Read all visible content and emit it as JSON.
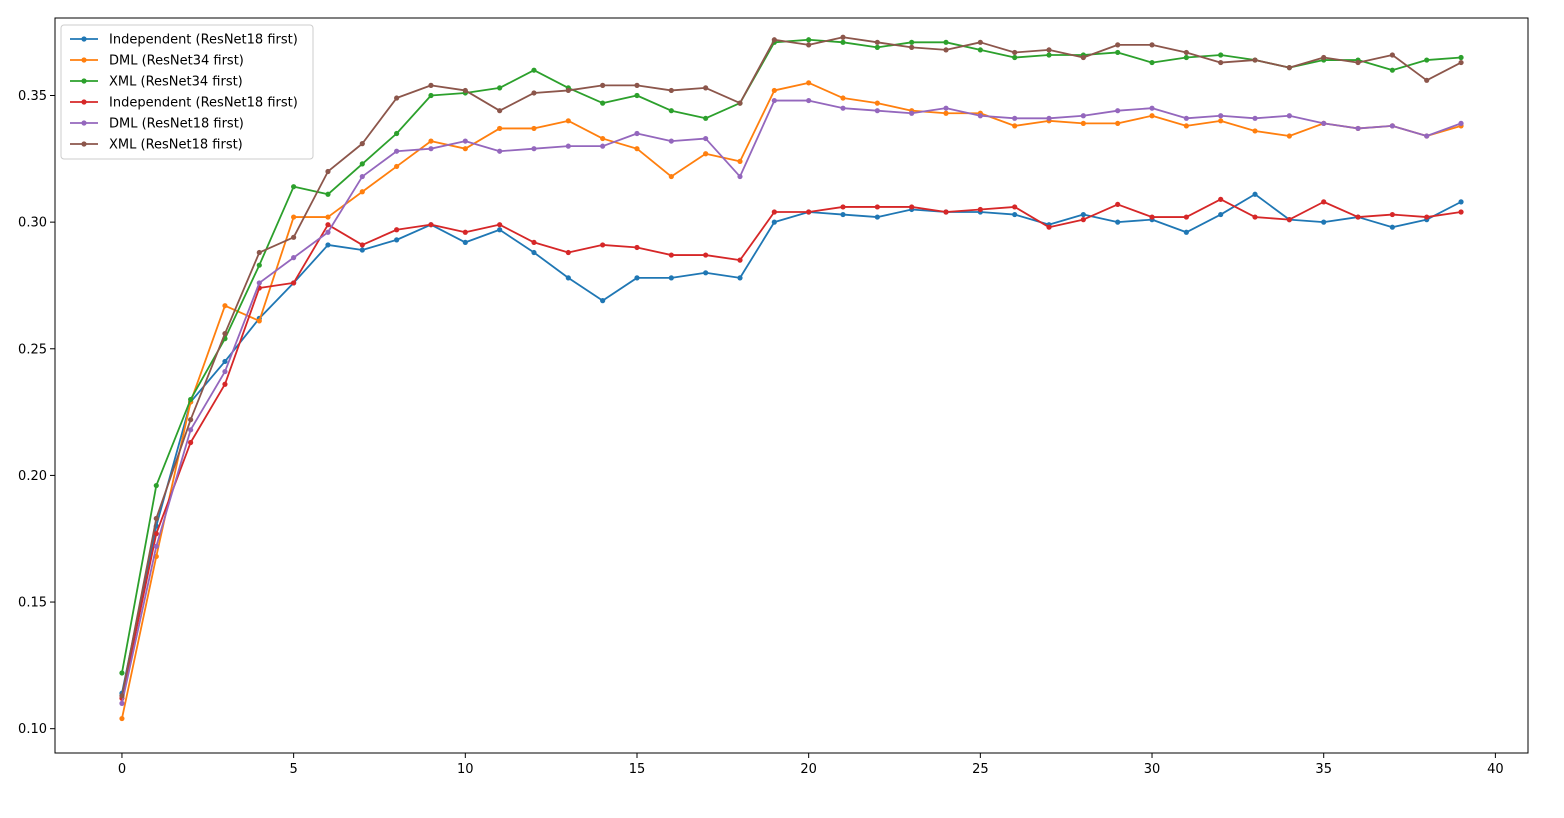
{
  "chart_data": {
    "type": "line",
    "title": "",
    "xlabel": "",
    "ylabel": "",
    "xlim": [
      -1.95,
      40.95
    ],
    "ylim": [
      0.0904,
      0.3806
    ],
    "xticks": [
      0,
      5,
      10,
      15,
      20,
      25,
      30,
      35,
      40
    ],
    "yticks": [
      0.1,
      0.15,
      0.2,
      0.25,
      0.3,
      0.35
    ],
    "ytick_labels": [
      "0.10",
      "0.15",
      "0.20",
      "0.25",
      "0.30",
      "0.35"
    ],
    "grid": false,
    "legend_position": "top-left",
    "x": [
      0,
      1,
      2,
      3,
      4,
      5,
      6,
      7,
      8,
      9,
      10,
      11,
      12,
      13,
      14,
      15,
      16,
      17,
      18,
      19,
      20,
      21,
      22,
      23,
      24,
      25,
      26,
      27,
      28,
      29,
      30,
      31,
      32,
      33,
      34,
      35,
      36,
      37,
      38,
      39
    ],
    "series": [
      {
        "name": "Independent (ResNet18 first)",
        "color": "#1f77b4",
        "values": [
          0.114,
          0.18,
          0.229,
          0.245,
          0.262,
          0.276,
          0.291,
          0.289,
          0.293,
          0.299,
          0.292,
          0.297,
          0.288,
          0.278,
          0.269,
          0.278,
          0.278,
          0.28,
          0.278,
          0.3,
          0.304,
          0.303,
          0.302,
          0.305,
          0.304,
          0.304,
          0.303,
          0.299,
          0.303,
          0.3,
          0.301,
          0.296,
          0.303,
          0.311,
          0.301,
          0.3,
          0.302,
          0.298,
          0.301,
          0.308
        ]
      },
      {
        "name": "DML (ResNet34 first)",
        "color": "#ff7f0e",
        "values": [
          0.104,
          0.168,
          0.229,
          0.267,
          0.261,
          0.302,
          0.302,
          0.312,
          0.322,
          0.332,
          0.329,
          0.337,
          0.337,
          0.34,
          0.333,
          0.329,
          0.318,
          0.327,
          0.324,
          0.352,
          0.355,
          0.349,
          0.347,
          0.344,
          0.343,
          0.343,
          0.338,
          0.34,
          0.339,
          0.339,
          0.342,
          0.338,
          0.34,
          0.336,
          0.334,
          0.339,
          0.337,
          0.338,
          0.334,
          0.338
        ]
      },
      {
        "name": "XML (ResNet34 first)",
        "color": "#2ca02c",
        "values": [
          0.122,
          0.196,
          0.23,
          0.254,
          0.283,
          0.314,
          0.311,
          0.323,
          0.335,
          0.35,
          0.351,
          0.353,
          0.36,
          0.353,
          0.347,
          0.35,
          0.344,
          0.341,
          0.347,
          0.371,
          0.372,
          0.371,
          0.369,
          0.371,
          0.371,
          0.368,
          0.365,
          0.366,
          0.366,
          0.367,
          0.363,
          0.365,
          0.366,
          0.364,
          0.361,
          0.364,
          0.364,
          0.36,
          0.364,
          0.365
        ]
      },
      {
        "name": "Independent (ResNet18 first)",
        "color": "#d62728",
        "values": [
          0.112,
          0.177,
          0.213,
          0.236,
          0.274,
          0.276,
          0.299,
          0.291,
          0.297,
          0.299,
          0.296,
          0.299,
          0.292,
          0.288,
          0.291,
          0.29,
          0.287,
          0.287,
          0.285,
          0.304,
          0.304,
          0.306,
          0.306,
          0.306,
          0.304,
          0.305,
          0.306,
          0.298,
          0.301,
          0.307,
          0.302,
          0.302,
          0.309,
          0.302,
          0.301,
          0.308,
          0.302,
          0.303,
          0.302,
          0.304
        ]
      },
      {
        "name": "DML (ResNet18 first)",
        "color": "#9467bd",
        "values": [
          0.11,
          0.172,
          0.218,
          0.241,
          0.276,
          0.286,
          0.296,
          0.318,
          0.328,
          0.329,
          0.332,
          0.328,
          0.329,
          0.33,
          0.33,
          0.335,
          0.332,
          0.333,
          0.318,
          0.348,
          0.348,
          0.345,
          0.344,
          0.343,
          0.345,
          0.342,
          0.341,
          0.341,
          0.342,
          0.344,
          0.345,
          0.341,
          0.342,
          0.341,
          0.342,
          0.339,
          0.337,
          0.338,
          0.334,
          0.339
        ]
      },
      {
        "name": "XML (ResNet18 first)",
        "color": "#8c564b",
        "values": [
          0.113,
          0.183,
          0.222,
          0.256,
          0.288,
          0.294,
          0.32,
          0.331,
          0.349,
          0.354,
          0.352,
          0.344,
          0.351,
          0.352,
          0.354,
          0.354,
          0.352,
          0.353,
          0.347,
          0.372,
          0.37,
          0.373,
          0.371,
          0.369,
          0.368,
          0.371,
          0.367,
          0.368,
          0.365,
          0.37,
          0.37,
          0.367,
          0.363,
          0.364,
          0.361,
          0.365,
          0.363,
          0.366,
          0.356,
          0.363
        ]
      }
    ]
  }
}
